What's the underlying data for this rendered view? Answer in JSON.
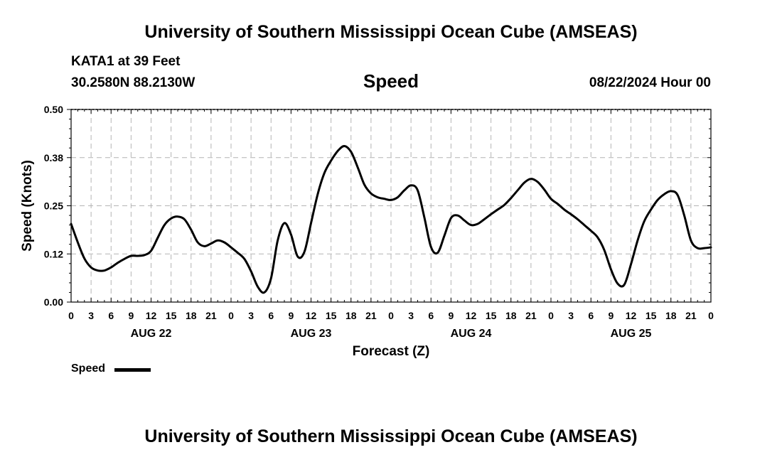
{
  "header": {
    "title": "University of Southern Mississippi Ocean Cube (AMSEAS)",
    "station": "KATA1 at 39 Feet",
    "coords": "30.2580N  88.2130W",
    "date": "08/22/2024 Hour 00"
  },
  "footer": {
    "title": "University of Southern Mississippi Ocean Cube (AMSEAS)"
  },
  "legend": {
    "label": "Speed"
  },
  "colors": {
    "line": "#000000",
    "grid": "#b4b4b4"
  },
  "chart_data": {
    "type": "line",
    "title": "Speed",
    "xlabel": "Forecast (Z)",
    "ylabel": "Speed (Knots)",
    "ylim": [
      0,
      0.5
    ],
    "xlim": [
      0,
      96
    ],
    "y_ticks": [
      "0.00",
      "0.12",
      "0.25",
      "0.38",
      "0.50"
    ],
    "x_ticks": [
      "0",
      "3",
      "6",
      "9",
      "12",
      "15",
      "18",
      "21",
      "0",
      "3",
      "6",
      "9",
      "12",
      "15",
      "18",
      "21",
      "0",
      "3",
      "6",
      "9",
      "12",
      "15",
      "18",
      "21",
      "0",
      "3",
      "6",
      "9",
      "12",
      "15",
      "18",
      "21",
      "0"
    ],
    "day_labels": [
      {
        "label": "AUG 22",
        "hour": 12
      },
      {
        "label": "AUG 23",
        "hour": 36
      },
      {
        "label": "AUG 24",
        "hour": 60
      },
      {
        "label": "AUG 25",
        "hour": 84
      }
    ],
    "grid": true,
    "series": [
      {
        "name": "Speed",
        "x": [
          0,
          1,
          2,
          3,
          4,
          5,
          6,
          7,
          8,
          9,
          10,
          11,
          12,
          13,
          14,
          15,
          16,
          17,
          18,
          19,
          20,
          21,
          22,
          23,
          24,
          25,
          26,
          27,
          28,
          29,
          30,
          31,
          32,
          33,
          34,
          35,
          36,
          37,
          38,
          39,
          40,
          41,
          42,
          43,
          44,
          45,
          46,
          47,
          48,
          49,
          50,
          51,
          52,
          53,
          54,
          55,
          56,
          57,
          58,
          59,
          60,
          61,
          62,
          63,
          64,
          65,
          66,
          67,
          68,
          69,
          70,
          71,
          72,
          73,
          74,
          75,
          76,
          77,
          78,
          79,
          80,
          81,
          82,
          83,
          84,
          85,
          86,
          87,
          88,
          89,
          90,
          91,
          92,
          93,
          94,
          95,
          96
        ],
        "values": [
          0.203,
          0.155,
          0.113,
          0.09,
          0.082,
          0.082,
          0.09,
          0.102,
          0.112,
          0.12,
          0.12,
          0.122,
          0.133,
          0.167,
          0.2,
          0.217,
          0.222,
          0.215,
          0.188,
          0.155,
          0.145,
          0.152,
          0.16,
          0.155,
          0.142,
          0.128,
          0.112,
          0.08,
          0.04,
          0.025,
          0.062,
          0.16,
          0.205,
          0.175,
          0.118,
          0.13,
          0.205,
          0.28,
          0.335,
          0.367,
          0.392,
          0.405,
          0.39,
          0.35,
          0.305,
          0.282,
          0.272,
          0.268,
          0.265,
          0.272,
          0.29,
          0.303,
          0.29,
          0.22,
          0.143,
          0.128,
          0.172,
          0.218,
          0.225,
          0.212,
          0.2,
          0.203,
          0.215,
          0.228,
          0.24,
          0.252,
          0.27,
          0.29,
          0.31,
          0.32,
          0.312,
          0.292,
          0.268,
          0.255,
          0.24,
          0.228,
          0.215,
          0.2,
          0.185,
          0.168,
          0.135,
          0.085,
          0.048,
          0.045,
          0.098,
          0.16,
          0.21,
          0.24,
          0.265,
          0.28,
          0.288,
          0.278,
          0.225,
          0.16,
          0.14,
          0.14,
          0.142
        ]
      }
    ]
  }
}
